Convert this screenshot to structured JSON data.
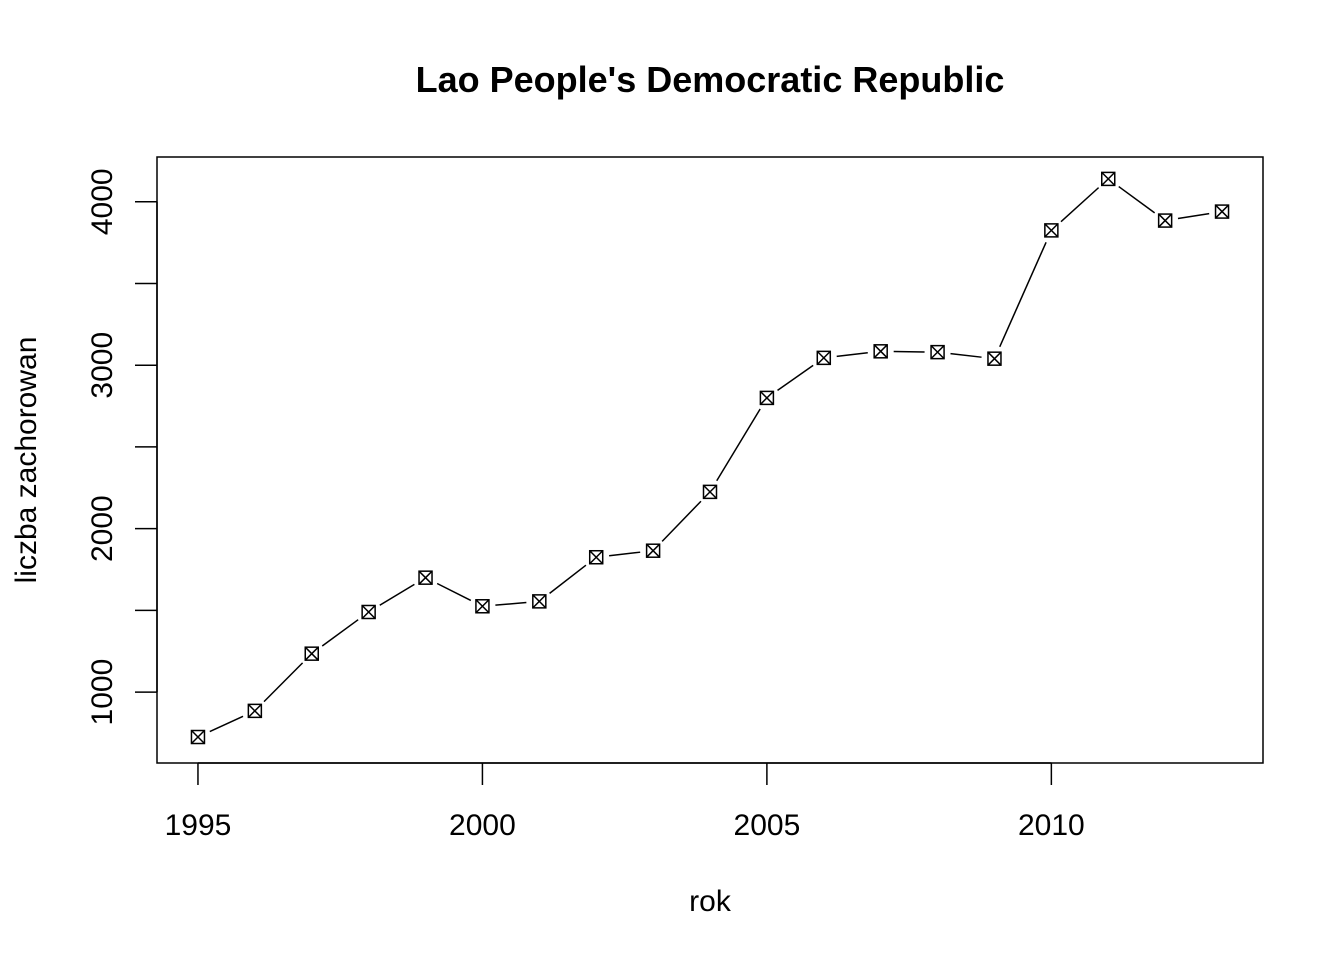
{
  "chart_data": {
    "type": "line",
    "title": "Lao People's Democratic Republic",
    "xlabel": "rok",
    "ylabel": "liczba zachorowan",
    "x": [
      1995,
      1996,
      1997,
      1998,
      1999,
      2000,
      2001,
      2002,
      2003,
      2004,
      2005,
      2006,
      2007,
      2008,
      2009,
      2010,
      2011,
      2012,
      2013
    ],
    "series": [
      {
        "values": [
          725,
          885,
          1235,
          1490,
          1700,
          1525,
          1555,
          1825,
          1865,
          2225,
          2800,
          3045,
          3085,
          3080,
          3040,
          3825,
          4140,
          3885,
          3940
        ]
      }
    ],
    "xticks": [
      1995,
      2000,
      2005,
      2010
    ],
    "yticks": [
      1000,
      2000,
      3000,
      4000
    ],
    "xlim": [
      1994.28,
      2013.72
    ],
    "ylim": [
      566,
      4274
    ],
    "marker": "crossed-box",
    "grid": false,
    "legend": "none",
    "colors": {
      "line": "#000000",
      "marker": "#000000",
      "background": "#ffffff"
    }
  }
}
